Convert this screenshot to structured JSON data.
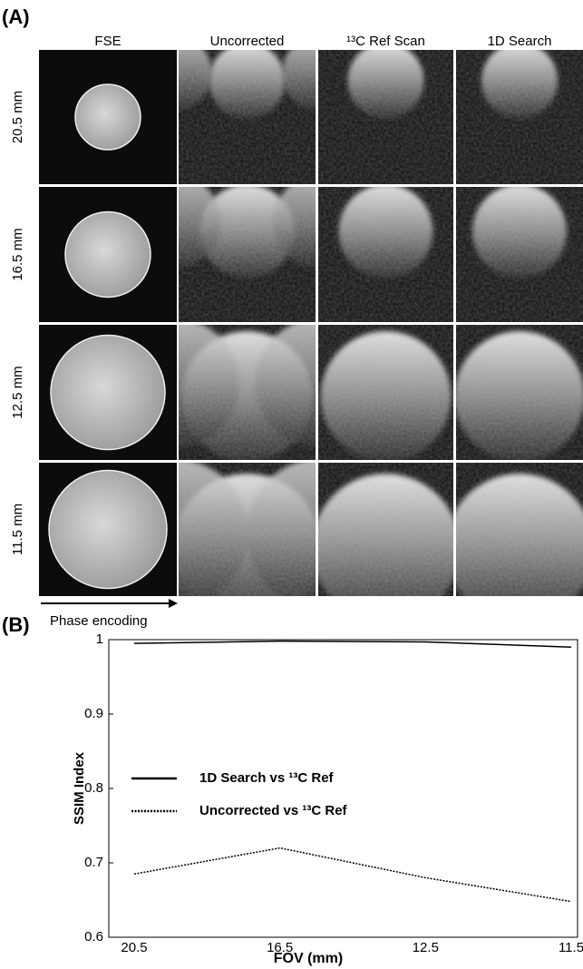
{
  "panel_labels": [
    "(A)",
    "(B)"
  ],
  "panel_a": {
    "columns": [
      "FSE",
      "Uncorrected",
      "¹³C Ref Scan",
      "1D Search"
    ],
    "rows": [
      "20.5 mm",
      "16.5 mm",
      "12.5 mm",
      "11.5 mm"
    ],
    "axis_label": "Phase encoding"
  },
  "chart_data": {
    "type": "line",
    "x_label": "FOV (mm)",
    "y_label": "SSIM Index",
    "categories": [
      "20.5",
      "16.5",
      "12.5",
      "11.5"
    ],
    "series": [
      {
        "name": "1D Search vs ¹³C Ref",
        "color": "#000000",
        "style": "solid",
        "values": [
          0.995,
          0.998,
          0.997,
          0.99
        ]
      },
      {
        "name": "Uncorrected vs ¹³C Ref",
        "color": "#000000",
        "style": "dotted",
        "values": [
          0.685,
          0.72,
          0.68,
          0.648
        ]
      }
    ],
    "ylim": [
      0.6,
      1
    ],
    "yticks": [
      0.6,
      0.7,
      0.8,
      0.9,
      1
    ],
    "grid": false
  }
}
